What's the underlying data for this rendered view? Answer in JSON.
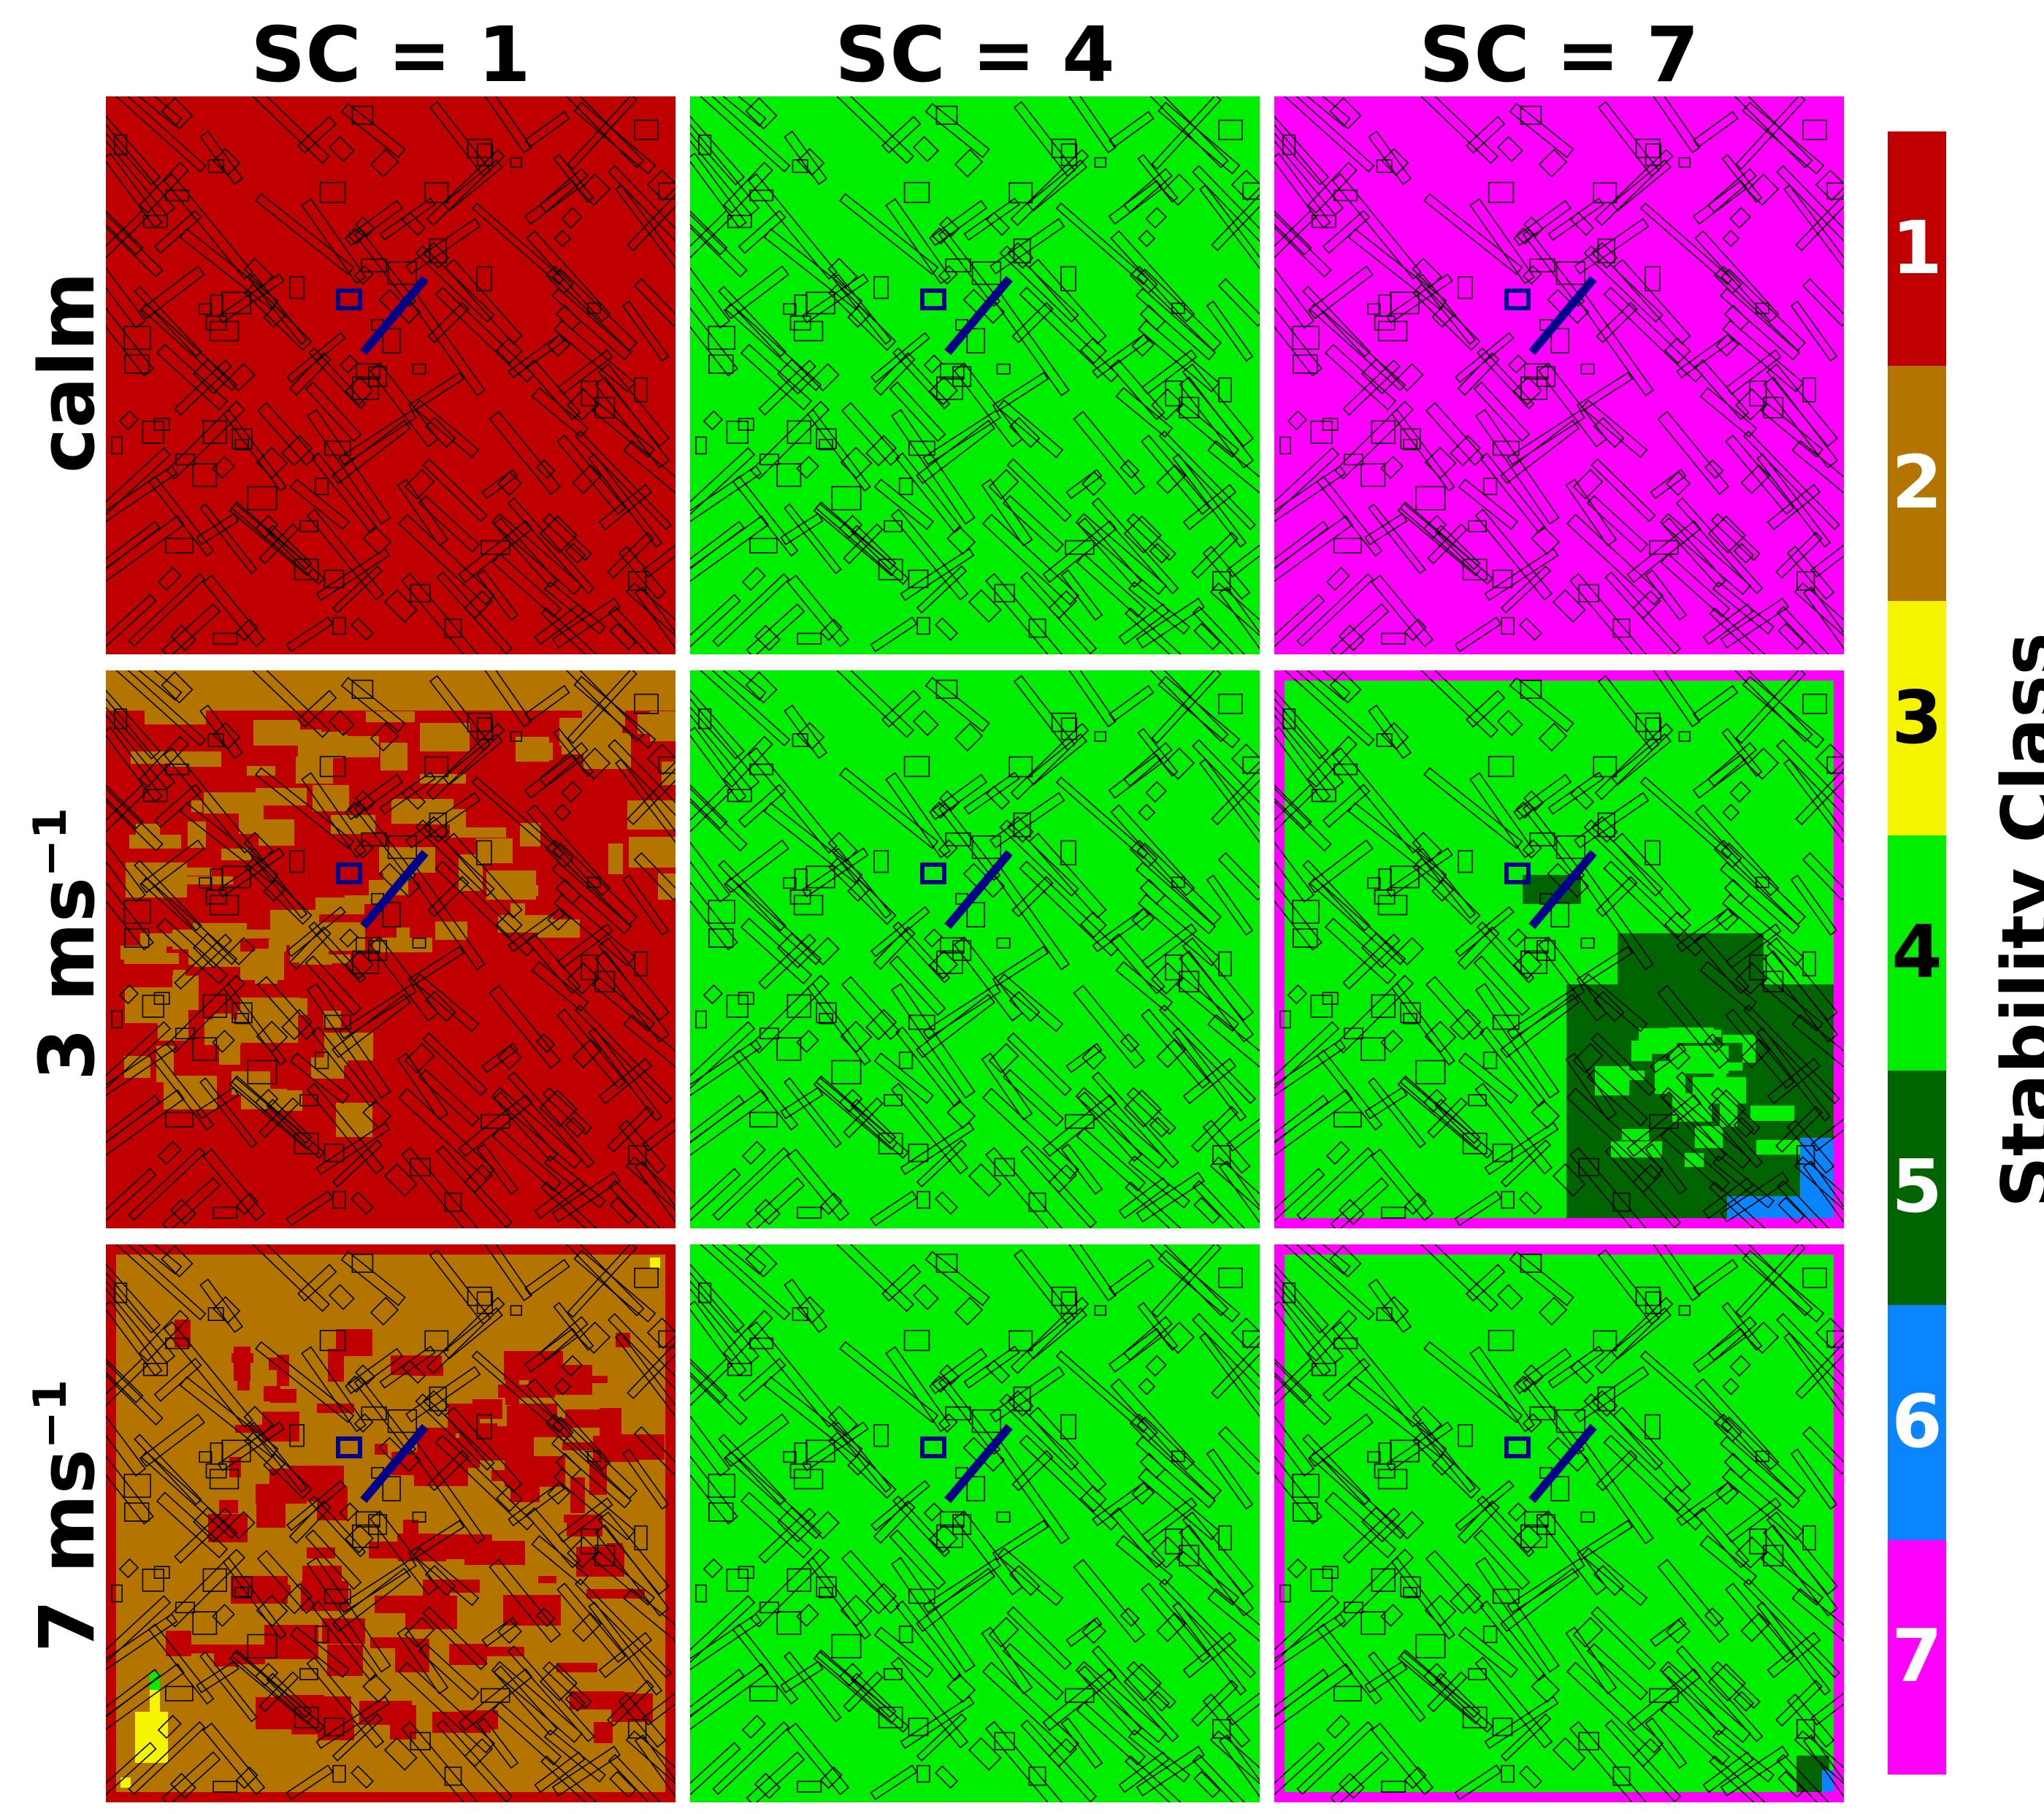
{
  "chart_data": {
    "type": "heatmap",
    "columns": [
      "SC = 1",
      "SC = 4",
      "SC = 7"
    ],
    "rows": [
      {
        "label": "calm",
        "sup": ""
      },
      {
        "label": "3 ms",
        "sup": "−1"
      },
      {
        "label": "7 ms",
        "sup": "−1"
      }
    ],
    "panels": [
      {
        "row": 0,
        "col": 0,
        "base_class": 1,
        "patch_classes": []
      },
      {
        "row": 0,
        "col": 1,
        "base_class": 4,
        "patch_classes": []
      },
      {
        "row": 0,
        "col": 2,
        "base_class": 7,
        "patch_classes": []
      },
      {
        "row": 1,
        "col": 0,
        "base_class": 1,
        "patch_classes": [
          2
        ]
      },
      {
        "row": 1,
        "col": 1,
        "base_class": 4,
        "patch_classes": []
      },
      {
        "row": 1,
        "col": 2,
        "base_class": 4,
        "border_class": 7,
        "patch_classes": [
          5,
          6
        ]
      },
      {
        "row": 2,
        "col": 0,
        "base_class": 2,
        "border_class": 1,
        "patch_classes": [
          1,
          3,
          4
        ]
      },
      {
        "row": 2,
        "col": 1,
        "base_class": 4,
        "patch_classes": []
      },
      {
        "row": 2,
        "col": 2,
        "base_class": 4,
        "border_class": 7,
        "patch_classes": [
          5,
          6
        ]
      }
    ],
    "colorbar": {
      "title": "Stability Class",
      "classes": [
        {
          "label": "1",
          "color": "#c00000",
          "text_color": "#ffffff"
        },
        {
          "label": "2",
          "color": "#b37400",
          "text_color": "#ffffff"
        },
        {
          "label": "3",
          "color": "#f5f500",
          "text_color": "#000000"
        },
        {
          "label": "4",
          "color": "#00ee00",
          "text_color": "#000000"
        },
        {
          "label": "5",
          "color": "#006400",
          "text_color": "#ffffff"
        },
        {
          "label": "6",
          "color": "#0a84ff",
          "text_color": "#ffffff"
        },
        {
          "label": "7",
          "color": "#ff00ff",
          "text_color": "#ffffff"
        }
      ]
    },
    "overlay": {
      "building_outline_color": "#000000",
      "target_building_color": "#00008b"
    }
  }
}
